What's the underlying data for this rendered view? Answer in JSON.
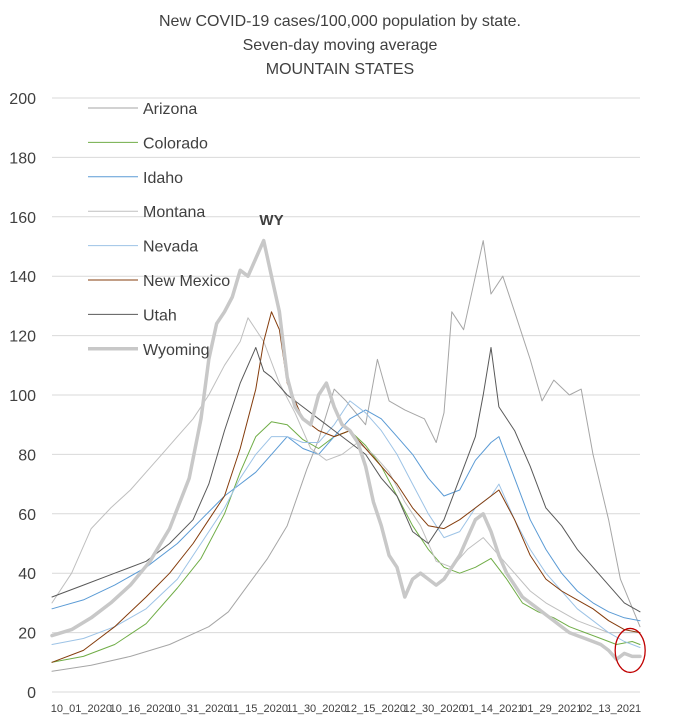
{
  "chart_data": {
    "type": "line",
    "title": [
      "New COVID-19 cases/100,000 population by state.",
      "Seven-day moving average",
      "MOUNTAIN STATES"
    ],
    "ylim": [
      0,
      200
    ],
    "yticks": [
      0,
      20,
      40,
      60,
      80,
      100,
      120,
      140,
      160,
      180,
      200
    ],
    "grid": "horizontal",
    "legend_position": "top-left",
    "xticks": [
      "10_01_2020",
      "10_16_2020",
      "10_31_2020",
      "11_15_2020",
      "11_30_2020",
      "12_15_2020",
      "12_30_2020",
      "01_14_2021",
      "01_29_2021",
      "02_13_2021"
    ],
    "x_day_range": [
      0,
      150
    ],
    "annotation": {
      "text": "WY",
      "day": 56,
      "value": 159
    },
    "highlight_circle": {
      "day": 148,
      "value": 14,
      "color": "#c00000"
    },
    "series": [
      {
        "name": "Arizona",
        "color": "#a6a6a6",
        "width": 1,
        "points": [
          [
            0,
            7
          ],
          [
            10,
            9
          ],
          [
            20,
            12
          ],
          [
            30,
            16
          ],
          [
            40,
            22
          ],
          [
            45,
            27
          ],
          [
            50,
            36
          ],
          [
            55,
            45
          ],
          [
            60,
            56
          ],
          [
            65,
            75
          ],
          [
            68,
            85
          ],
          [
            72,
            102
          ],
          [
            75,
            98
          ],
          [
            80,
            90
          ],
          [
            83,
            112
          ],
          [
            86,
            98
          ],
          [
            90,
            95
          ],
          [
            95,
            92
          ],
          [
            98,
            84
          ],
          [
            100,
            94
          ],
          [
            102,
            128
          ],
          [
            105,
            122
          ],
          [
            108,
            140
          ],
          [
            110,
            152
          ],
          [
            112,
            134
          ],
          [
            115,
            140
          ],
          [
            118,
            128
          ],
          [
            122,
            112
          ],
          [
            125,
            98
          ],
          [
            128,
            105
          ],
          [
            132,
            100
          ],
          [
            135,
            102
          ],
          [
            138,
            80
          ],
          [
            142,
            58
          ],
          [
            145,
            38
          ],
          [
            150,
            22
          ]
        ]
      },
      {
        "name": "Colorado",
        "color": "#70ad47",
        "width": 1,
        "points": [
          [
            0,
            10
          ],
          [
            8,
            12
          ],
          [
            16,
            16
          ],
          [
            24,
            23
          ],
          [
            32,
            35
          ],
          [
            38,
            45
          ],
          [
            44,
            60
          ],
          [
            48,
            74
          ],
          [
            52,
            86
          ],
          [
            56,
            91
          ],
          [
            60,
            90
          ],
          [
            64,
            85
          ],
          [
            68,
            82
          ],
          [
            72,
            86
          ],
          [
            76,
            88
          ],
          [
            80,
            83
          ],
          [
            84,
            76
          ],
          [
            88,
            66
          ],
          [
            92,
            56
          ],
          [
            96,
            48
          ],
          [
            100,
            42
          ],
          [
            104,
            40
          ],
          [
            108,
            42
          ],
          [
            112,
            45
          ],
          [
            116,
            38
          ],
          [
            120,
            30
          ],
          [
            124,
            27
          ],
          [
            128,
            25
          ],
          [
            132,
            22
          ],
          [
            136,
            20
          ],
          [
            140,
            18
          ],
          [
            144,
            16
          ],
          [
            148,
            17
          ],
          [
            150,
            16
          ]
        ]
      },
      {
        "name": "Idaho",
        "color": "#5b9bd5",
        "width": 1,
        "points": [
          [
            0,
            28
          ],
          [
            8,
            31
          ],
          [
            16,
            36
          ],
          [
            24,
            42
          ],
          [
            32,
            50
          ],
          [
            38,
            58
          ],
          [
            44,
            66
          ],
          [
            48,
            70
          ],
          [
            52,
            74
          ],
          [
            56,
            80
          ],
          [
            60,
            86
          ],
          [
            64,
            82
          ],
          [
            68,
            80
          ],
          [
            72,
            86
          ],
          [
            76,
            92
          ],
          [
            80,
            95
          ],
          [
            84,
            92
          ],
          [
            88,
            86
          ],
          [
            92,
            80
          ],
          [
            96,
            72
          ],
          [
            100,
            66
          ],
          [
            104,
            68
          ],
          [
            108,
            78
          ],
          [
            112,
            84
          ],
          [
            114,
            86
          ],
          [
            118,
            72
          ],
          [
            122,
            58
          ],
          [
            126,
            48
          ],
          [
            130,
            40
          ],
          [
            134,
            34
          ],
          [
            138,
            30
          ],
          [
            142,
            27
          ],
          [
            146,
            25
          ],
          [
            150,
            24
          ]
        ]
      },
      {
        "name": "Montana",
        "color": "#bfbfbf",
        "width": 1,
        "points": [
          [
            0,
            30
          ],
          [
            5,
            40
          ],
          [
            10,
            55
          ],
          [
            15,
            62
          ],
          [
            20,
            68
          ],
          [
            24,
            74
          ],
          [
            28,
            80
          ],
          [
            32,
            86
          ],
          [
            36,
            92
          ],
          [
            40,
            100
          ],
          [
            44,
            110
          ],
          [
            48,
            118
          ],
          [
            50,
            126
          ],
          [
            54,
            118
          ],
          [
            58,
            104
          ],
          [
            62,
            94
          ],
          [
            66,
            82
          ],
          [
            70,
            78
          ],
          [
            74,
            80
          ],
          [
            78,
            84
          ],
          [
            82,
            80
          ],
          [
            86,
            74
          ],
          [
            90,
            64
          ],
          [
            94,
            56
          ],
          [
            98,
            44
          ],
          [
            102,
            42
          ],
          [
            106,
            48
          ],
          [
            110,
            52
          ],
          [
            114,
            46
          ],
          [
            118,
            40
          ],
          [
            122,
            34
          ],
          [
            126,
            30
          ],
          [
            130,
            27
          ],
          [
            134,
            24
          ],
          [
            138,
            22
          ],
          [
            142,
            20
          ],
          [
            146,
            20
          ],
          [
            150,
            20
          ]
        ]
      },
      {
        "name": "Nevada",
        "color": "#9dc3e6",
        "width": 1,
        "points": [
          [
            0,
            16
          ],
          [
            8,
            18
          ],
          [
            16,
            22
          ],
          [
            24,
            28
          ],
          [
            32,
            38
          ],
          [
            38,
            50
          ],
          [
            44,
            62
          ],
          [
            48,
            72
          ],
          [
            52,
            80
          ],
          [
            56,
            86
          ],
          [
            60,
            86
          ],
          [
            64,
            84
          ],
          [
            68,
            84
          ],
          [
            72,
            90
          ],
          [
            76,
            98
          ],
          [
            80,
            94
          ],
          [
            84,
            88
          ],
          [
            88,
            80
          ],
          [
            92,
            70
          ],
          [
            96,
            60
          ],
          [
            100,
            52
          ],
          [
            104,
            54
          ],
          [
            108,
            62
          ],
          [
            112,
            66
          ],
          [
            114,
            70
          ],
          [
            118,
            58
          ],
          [
            122,
            48
          ],
          [
            126,
            40
          ],
          [
            130,
            34
          ],
          [
            134,
            28
          ],
          [
            138,
            24
          ],
          [
            142,
            20
          ],
          [
            146,
            17
          ],
          [
            150,
            15
          ]
        ]
      },
      {
        "name": "New Mexico",
        "color": "#843c0c",
        "width": 1,
        "points": [
          [
            0,
            10
          ],
          [
            8,
            14
          ],
          [
            16,
            22
          ],
          [
            24,
            32
          ],
          [
            30,
            40
          ],
          [
            36,
            50
          ],
          [
            40,
            58
          ],
          [
            44,
            66
          ],
          [
            48,
            82
          ],
          [
            52,
            102
          ],
          [
            54,
            118
          ],
          [
            56,
            128
          ],
          [
            58,
            122
          ],
          [
            60,
            104
          ],
          [
            64,
            92
          ],
          [
            68,
            88
          ],
          [
            72,
            86
          ],
          [
            76,
            88
          ],
          [
            80,
            82
          ],
          [
            84,
            76
          ],
          [
            88,
            70
          ],
          [
            92,
            62
          ],
          [
            96,
            56
          ],
          [
            100,
            55
          ],
          [
            104,
            58
          ],
          [
            108,
            62
          ],
          [
            112,
            66
          ],
          [
            114,
            68
          ],
          [
            118,
            58
          ],
          [
            122,
            46
          ],
          [
            126,
            38
          ],
          [
            130,
            34
          ],
          [
            134,
            31
          ],
          [
            138,
            28
          ],
          [
            142,
            24
          ],
          [
            146,
            21
          ],
          [
            150,
            20
          ]
        ]
      },
      {
        "name": "Utah",
        "color": "#595959",
        "width": 1,
        "points": [
          [
            0,
            32
          ],
          [
            8,
            36
          ],
          [
            16,
            40
          ],
          [
            24,
            44
          ],
          [
            30,
            50
          ],
          [
            36,
            58
          ],
          [
            40,
            70
          ],
          [
            44,
            88
          ],
          [
            48,
            104
          ],
          [
            52,
            116
          ],
          [
            54,
            108
          ],
          [
            56,
            106
          ],
          [
            60,
            100
          ],
          [
            64,
            96
          ],
          [
            68,
            92
          ],
          [
            72,
            88
          ],
          [
            76,
            84
          ],
          [
            80,
            80
          ],
          [
            84,
            72
          ],
          [
            88,
            66
          ],
          [
            92,
            54
          ],
          [
            96,
            50
          ],
          [
            100,
            58
          ],
          [
            104,
            72
          ],
          [
            108,
            86
          ],
          [
            110,
            100
          ],
          [
            112,
            116
          ],
          [
            114,
            96
          ],
          [
            118,
            88
          ],
          [
            122,
            76
          ],
          [
            126,
            62
          ],
          [
            130,
            56
          ],
          [
            134,
            48
          ],
          [
            138,
            42
          ],
          [
            142,
            36
          ],
          [
            146,
            30
          ],
          [
            150,
            27
          ]
        ]
      },
      {
        "name": "Wyoming",
        "color": "#c8c8c8",
        "width": 3.5,
        "points": [
          [
            0,
            19
          ],
          [
            5,
            21
          ],
          [
            10,
            25
          ],
          [
            15,
            30
          ],
          [
            20,
            36
          ],
          [
            25,
            44
          ],
          [
            30,
            55
          ],
          [
            35,
            72
          ],
          [
            38,
            92
          ],
          [
            40,
            112
          ],
          [
            42,
            124
          ],
          [
            44,
            128
          ],
          [
            46,
            133
          ],
          [
            48,
            142
          ],
          [
            50,
            140
          ],
          [
            52,
            146
          ],
          [
            54,
            152
          ],
          [
            56,
            140
          ],
          [
            58,
            128
          ],
          [
            60,
            106
          ],
          [
            62,
            96
          ],
          [
            64,
            92
          ],
          [
            66,
            90
          ],
          [
            68,
            100
          ],
          [
            70,
            104
          ],
          [
            72,
            96
          ],
          [
            74,
            90
          ],
          [
            76,
            88
          ],
          [
            78,
            84
          ],
          [
            80,
            76
          ],
          [
            82,
            64
          ],
          [
            84,
            56
          ],
          [
            86,
            46
          ],
          [
            88,
            42
          ],
          [
            90,
            32
          ],
          [
            92,
            38
          ],
          [
            94,
            40
          ],
          [
            96,
            38
          ],
          [
            98,
            36
          ],
          [
            100,
            38
          ],
          [
            102,
            42
          ],
          [
            104,
            46
          ],
          [
            106,
            52
          ],
          [
            108,
            58
          ],
          [
            110,
            60
          ],
          [
            112,
            54
          ],
          [
            114,
            46
          ],
          [
            116,
            40
          ],
          [
            118,
            36
          ],
          [
            120,
            32
          ],
          [
            122,
            30
          ],
          [
            124,
            28
          ],
          [
            126,
            26
          ],
          [
            128,
            24
          ],
          [
            130,
            22
          ],
          [
            132,
            20
          ],
          [
            134,
            19
          ],
          [
            136,
            18
          ],
          [
            138,
            17
          ],
          [
            140,
            16
          ],
          [
            142,
            14
          ],
          [
            144,
            11
          ],
          [
            146,
            13
          ],
          [
            148,
            12
          ],
          [
            150,
            12
          ]
        ]
      }
    ]
  }
}
